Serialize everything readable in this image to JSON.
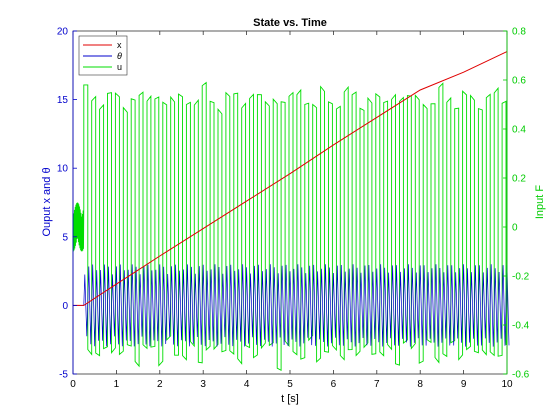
{
  "chart_data": {
    "type": "line",
    "title": "State vs. Time",
    "xlabel": "t [s]",
    "ylabel_left": "Ouput x and θ",
    "ylabel_right": "Input F",
    "xlim": [
      0,
      10
    ],
    "ylim_left": [
      -5,
      20
    ],
    "ylim_right": [
      -0.6,
      0.8
    ],
    "xticks": [
      "0",
      "1",
      "2",
      "3",
      "4",
      "5",
      "6",
      "7",
      "8",
      "9",
      "10"
    ],
    "yticks_left": [
      "-5",
      "0",
      "5",
      "10",
      "15",
      "20"
    ],
    "yticks_right": [
      "-0.6",
      "-0.4",
      "-0.2",
      "0",
      "0.2",
      "0.4",
      "0.6",
      "0.8"
    ],
    "grid": false,
    "legend_position": "top-left",
    "series": [
      {
        "name": "x",
        "axis": "left",
        "color": "#e00000",
        "x": [
          0,
          0.25,
          1,
          2,
          3,
          4,
          5,
          6,
          7,
          8,
          9,
          10
        ],
        "y": [
          0,
          0,
          1.55,
          3.6,
          5.6,
          7.6,
          9.6,
          11.7,
          13.7,
          15.7,
          17.0,
          18.5
        ]
      },
      {
        "name": "θ",
        "axis": "left",
        "color": "#0000cc",
        "pattern": "oscillation",
        "x_start": 0.25,
        "x_end": 10,
        "y_min": -3.0,
        "y_max": 3.0,
        "cycles_per_second": 11
      },
      {
        "name": "u",
        "axis": "right",
        "color": "#00dd00",
        "pattern": "square-burst",
        "initial_segment": {
          "x": [
            0,
            0.25
          ],
          "y_min": -0.1,
          "y_max": 0.1
        },
        "x_start": 0.25,
        "x_end": 10,
        "y_min": -0.58,
        "y_max": 0.58,
        "cycles_per_second": 5.5
      }
    ]
  }
}
